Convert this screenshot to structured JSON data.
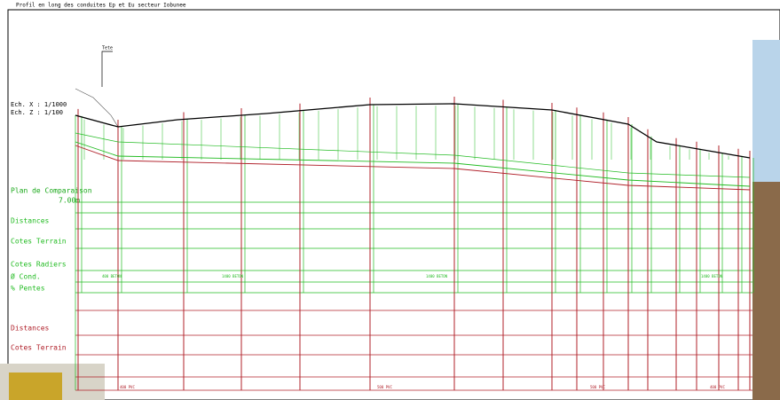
{
  "header": {
    "title": "Profil en long des conduites Ep et Eu secteur Iobunee"
  },
  "scales": [
    "Ech. X : 1/1000",
    "Ech. Z : 1/100"
  ],
  "top_label": "Tete",
  "plan": {
    "label": "Plan de Comparaison",
    "value": "7.00m"
  },
  "upper_rows": [
    "Distances",
    "Cotes Terrain",
    "Cotes Radiers",
    "Ø Cond.",
    "% Pentes"
  ],
  "lower_rows": [
    "Distances",
    "Cotes Terrain"
  ],
  "pipes_upper": [
    "400 BETON",
    "1400 BETON",
    "1400 BETON",
    "1400 BETON"
  ],
  "pipes_lower": [
    "400 PVC",
    "500 PVC",
    "500 PVC",
    "400 PVC"
  ]
}
